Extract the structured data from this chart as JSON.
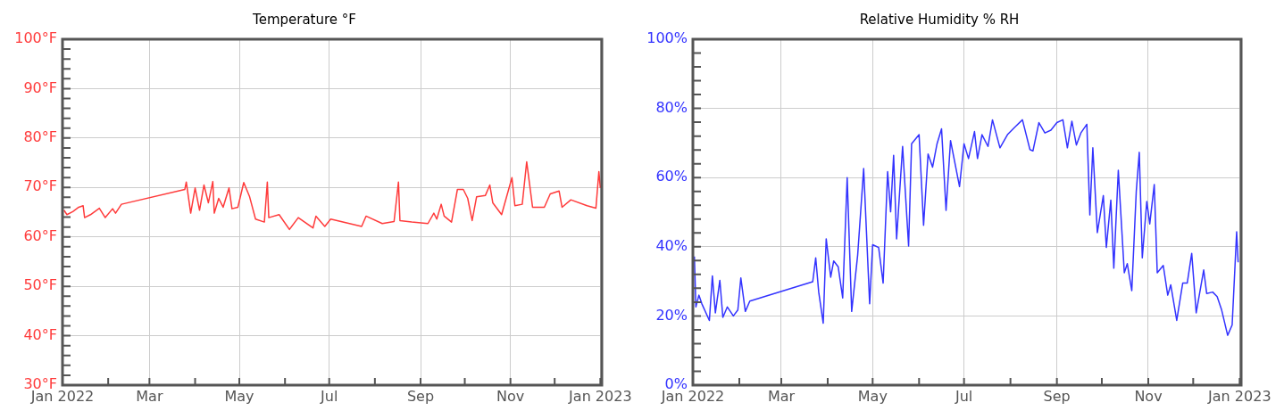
{
  "chart_data": [
    {
      "type": "line",
      "title": "Temperature °F",
      "color": "#ff3b3b",
      "marker": "none",
      "grid": true,
      "x": [
        "2022-01-02",
        "2022-01-04",
        "2022-01-08",
        "2022-01-12",
        "2022-01-15",
        "2022-01-16",
        "2022-01-20",
        "2022-01-26",
        "2022-01-30",
        "2022-02-04",
        "2022-02-06",
        "2022-02-10",
        "2022-03-25",
        "2022-03-26",
        "2022-03-29",
        "2022-04-01",
        "2022-04-04",
        "2022-04-07",
        "2022-04-10",
        "2022-04-13",
        "2022-04-14",
        "2022-04-17",
        "2022-04-20",
        "2022-04-24",
        "2022-04-26",
        "2022-04-30",
        "2022-05-04",
        "2022-05-08",
        "2022-05-12",
        "2022-05-18",
        "2022-05-20",
        "2022-05-21",
        "2022-05-28",
        "2022-06-04",
        "2022-06-10",
        "2022-06-20",
        "2022-06-22",
        "2022-06-28",
        "2022-07-02",
        "2022-07-23",
        "2022-07-26",
        "2022-08-06",
        "2022-08-14",
        "2022-08-17",
        "2022-08-18",
        "2022-08-26",
        "2022-09-06",
        "2022-09-10",
        "2022-09-12",
        "2022-09-15",
        "2022-09-17",
        "2022-09-22",
        "2022-09-26",
        "2022-09-30",
        "2022-10-03",
        "2022-10-06",
        "2022-10-09",
        "2022-10-15",
        "2022-10-18",
        "2022-10-20",
        "2022-10-26",
        "2022-11-02",
        "2022-11-04",
        "2022-11-09",
        "2022-11-12",
        "2022-11-16",
        "2022-11-24",
        "2022-11-28",
        "2022-12-04",
        "2022-12-06",
        "2022-12-12",
        "2022-12-23",
        "2022-12-29",
        "2022-12-31",
        "2023-01-01"
      ],
      "values": [
        65.4,
        64.5,
        65.1,
        66.0,
        66.3,
        63.9,
        64.5,
        65.8,
        63.9,
        65.7,
        64.8,
        66.6,
        69.6,
        71.1,
        64.8,
        69.9,
        65.4,
        70.5,
        66.9,
        71.2,
        64.8,
        67.8,
        66.0,
        69.9,
        65.7,
        66.0,
        71.0,
        68.1,
        63.6,
        63.0,
        71.1,
        63.9,
        64.5,
        61.5,
        63.9,
        61.8,
        64.2,
        62.1,
        63.6,
        62.1,
        64.2,
        62.7,
        63.1,
        71.1,
        63.3,
        63.0,
        62.7,
        64.8,
        63.6,
        66.6,
        64.2,
        63.0,
        69.6,
        69.6,
        67.8,
        63.3,
        68.1,
        68.4,
        70.5,
        66.9,
        64.5,
        72.0,
        66.3,
        66.6,
        75.2,
        66.0,
        66.0,
        68.7,
        69.3,
        66.0,
        67.5,
        66.3,
        65.8,
        73.2,
        69.9
      ],
      "xlim": [
        "2022-01-01",
        "2023-01-02"
      ],
      "xticks": [
        {
          "value": "2022-01",
          "label": "Jan 2022"
        },
        {
          "value": "2022-02",
          "label": null
        },
        {
          "value": "2022-03",
          "label": "Mar"
        },
        {
          "value": "2022-04",
          "label": null
        },
        {
          "value": "2022-05",
          "label": "May"
        },
        {
          "value": "2022-06",
          "label": null
        },
        {
          "value": "2022-07",
          "label": "Jul"
        },
        {
          "value": "2022-08",
          "label": null
        },
        {
          "value": "2022-09",
          "label": "Sep"
        },
        {
          "value": "2022-10",
          "label": null
        },
        {
          "value": "2022-11",
          "label": "Nov"
        },
        {
          "value": "2022-12",
          "label": null
        },
        {
          "value": "2023-01",
          "label": "Jan 2023"
        }
      ],
      "ylim": [
        30,
        100
      ],
      "yticks": [
        {
          "value": 30,
          "label": "30°F"
        },
        {
          "value": 32,
          "label": null
        },
        {
          "value": 34,
          "label": null
        },
        {
          "value": 36,
          "label": null
        },
        {
          "value": 38,
          "label": null
        },
        {
          "value": 40,
          "label": "40°F"
        },
        {
          "value": 42,
          "label": null
        },
        {
          "value": 44,
          "label": null
        },
        {
          "value": 46,
          "label": null
        },
        {
          "value": 48,
          "label": null
        },
        {
          "value": 50,
          "label": "50°F"
        },
        {
          "value": 52,
          "label": null
        },
        {
          "value": 54,
          "label": null
        },
        {
          "value": 56,
          "label": null
        },
        {
          "value": 58,
          "label": null
        },
        {
          "value": 60,
          "label": "60°F"
        },
        {
          "value": 62,
          "label": null
        },
        {
          "value": 64,
          "label": null
        },
        {
          "value": 66,
          "label": null
        },
        {
          "value": 68,
          "label": null
        },
        {
          "value": 70,
          "label": "70°F"
        },
        {
          "value": 72,
          "label": null
        },
        {
          "value": 74,
          "label": null
        },
        {
          "value": 76,
          "label": null
        },
        {
          "value": 78,
          "label": null
        },
        {
          "value": 80,
          "label": "80°F"
        },
        {
          "value": 82,
          "label": null
        },
        {
          "value": 84,
          "label": null
        },
        {
          "value": 86,
          "label": null
        },
        {
          "value": 88,
          "label": null
        },
        {
          "value": 90,
          "label": "90°F"
        },
        {
          "value": 92,
          "label": null
        },
        {
          "value": 94,
          "label": null
        },
        {
          "value": 96,
          "label": null
        },
        {
          "value": 98,
          "label": null
        },
        {
          "value": 100,
          "label": "100°F"
        }
      ]
    },
    {
      "type": "line",
      "title": "Relative Humidity % RH",
      "color": "#3333ff",
      "marker": "none",
      "grid": true,
      "x": [
        "2022-01-02",
        "2022-01-03",
        "2022-01-05",
        "2022-01-07",
        "2022-01-12",
        "2022-01-14",
        "2022-01-16",
        "2022-01-19",
        "2022-01-21",
        "2022-01-24",
        "2022-01-28",
        "2022-01-31",
        "2022-02-02",
        "2022-02-05",
        "2022-02-08",
        "2022-03-22",
        "2022-03-24",
        "2022-03-26",
        "2022-03-29",
        "2022-03-31",
        "2022-04-03",
        "2022-04-05",
        "2022-04-08",
        "2022-04-11",
        "2022-04-14",
        "2022-04-17",
        "2022-04-21",
        "2022-04-25",
        "2022-04-29",
        "2022-05-01",
        "2022-05-05",
        "2022-05-08",
        "2022-05-11",
        "2022-05-13",
        "2022-05-15",
        "2022-05-17",
        "2022-05-21",
        "2022-05-25",
        "2022-05-27",
        "2022-06-01",
        "2022-06-04",
        "2022-06-07",
        "2022-06-10",
        "2022-06-13",
        "2022-06-16",
        "2022-06-19",
        "2022-06-22",
        "2022-06-28",
        "2022-07-01",
        "2022-07-04",
        "2022-07-08",
        "2022-07-10",
        "2022-07-13",
        "2022-07-17",
        "2022-07-20",
        "2022-07-25",
        "2022-07-30",
        "2022-08-04",
        "2022-08-09",
        "2022-08-14",
        "2022-08-16",
        "2022-08-20",
        "2022-08-24",
        "2022-08-28",
        "2022-09-01",
        "2022-09-05",
        "2022-09-08",
        "2022-09-11",
        "2022-09-14",
        "2022-09-17",
        "2022-09-21",
        "2022-09-23",
        "2022-09-25",
        "2022-09-28",
        "2022-10-02",
        "2022-10-04",
        "2022-10-07",
        "2022-10-09",
        "2022-10-12",
        "2022-10-16",
        "2022-10-18",
        "2022-10-21",
        "2022-10-24",
        "2022-10-26",
        "2022-10-28",
        "2022-10-31",
        "2022-11-02",
        "2022-11-05",
        "2022-11-07",
        "2022-11-11",
        "2022-11-14",
        "2022-11-16",
        "2022-11-20",
        "2022-11-24",
        "2022-11-27",
        "2022-11-30",
        "2022-12-03",
        "2022-12-08",
        "2022-12-10",
        "2022-12-14",
        "2022-12-17",
        "2022-12-20",
        "2022-12-24",
        "2022-12-27",
        "2022-12-30",
        "2022-12-31"
      ],
      "values": [
        37.2,
        22.6,
        26.0,
        23.5,
        18.7,
        31.6,
        20.9,
        30.3,
        19.6,
        22.6,
        20.0,
        21.7,
        31.0,
        21.3,
        24.3,
        29.9,
        36.8,
        26.9,
        17.9,
        42.3,
        31.2,
        35.9,
        34.2,
        25.2,
        60.0,
        21.3,
        37.6,
        62.6,
        23.5,
        40.6,
        39.8,
        29.5,
        61.7,
        50.1,
        66.4,
        42.3,
        69.0,
        40.2,
        69.8,
        72.4,
        46.2,
        66.8,
        63.0,
        69.8,
        74.1,
        50.5,
        70.7,
        57.4,
        69.8,
        65.5,
        73.3,
        65.5,
        72.4,
        69.0,
        76.7,
        68.6,
        72.4,
        74.6,
        76.7,
        68.1,
        67.7,
        75.9,
        72.9,
        73.7,
        75.9,
        76.7,
        68.6,
        76.3,
        69.4,
        72.9,
        75.4,
        49.2,
        68.6,
        44.1,
        54.8,
        39.8,
        53.5,
        33.8,
        62.1,
        32.5,
        35.1,
        27.3,
        56.1,
        67.3,
        36.8,
        53.1,
        46.6,
        58.0,
        32.5,
        34.6,
        26.0,
        29.0,
        18.7,
        29.5,
        29.5,
        38.1,
        20.9,
        33.3,
        26.5,
        26.9,
        25.6,
        21.7,
        14.4,
        17.4,
        44.3,
        35.5
      ],
      "xlim": [
        "2022-01-01",
        "2023-01-02"
      ],
      "xticks": [
        {
          "value": "2022-01",
          "label": "Jan 2022"
        },
        {
          "value": "2022-02",
          "label": null
        },
        {
          "value": "2022-03",
          "label": "Mar"
        },
        {
          "value": "2022-04",
          "label": null
        },
        {
          "value": "2022-05",
          "label": "May"
        },
        {
          "value": "2022-06",
          "label": null
        },
        {
          "value": "2022-07",
          "label": "Jul"
        },
        {
          "value": "2022-08",
          "label": null
        },
        {
          "value": "2022-09",
          "label": "Sep"
        },
        {
          "value": "2022-10",
          "label": null
        },
        {
          "value": "2022-11",
          "label": "Nov"
        },
        {
          "value": "2022-12",
          "label": null
        },
        {
          "value": "2023-01",
          "label": "Jan 2023"
        }
      ],
      "ylim": [
        0,
        100
      ],
      "yticks": [
        {
          "value": 0,
          "label": "0%"
        },
        {
          "value": 4,
          "label": null
        },
        {
          "value": 8,
          "label": null
        },
        {
          "value": 12,
          "label": null
        },
        {
          "value": 16,
          "label": null
        },
        {
          "value": 20,
          "label": "20%"
        },
        {
          "value": 24,
          "label": null
        },
        {
          "value": 28,
          "label": null
        },
        {
          "value": 32,
          "label": null
        },
        {
          "value": 36,
          "label": null
        },
        {
          "value": 40,
          "label": "40%"
        },
        {
          "value": 44,
          "label": null
        },
        {
          "value": 48,
          "label": null
        },
        {
          "value": 52,
          "label": null
        },
        {
          "value": 56,
          "label": null
        },
        {
          "value": 60,
          "label": "60%"
        },
        {
          "value": 64,
          "label": null
        },
        {
          "value": 68,
          "label": null
        },
        {
          "value": 72,
          "label": null
        },
        {
          "value": 76,
          "label": null
        },
        {
          "value": 80,
          "label": "80%"
        },
        {
          "value": 84,
          "label": null
        },
        {
          "value": 88,
          "label": null
        },
        {
          "value": 92,
          "label": null
        },
        {
          "value": 96,
          "label": null
        },
        {
          "value": 100,
          "label": "100%"
        }
      ]
    }
  ]
}
